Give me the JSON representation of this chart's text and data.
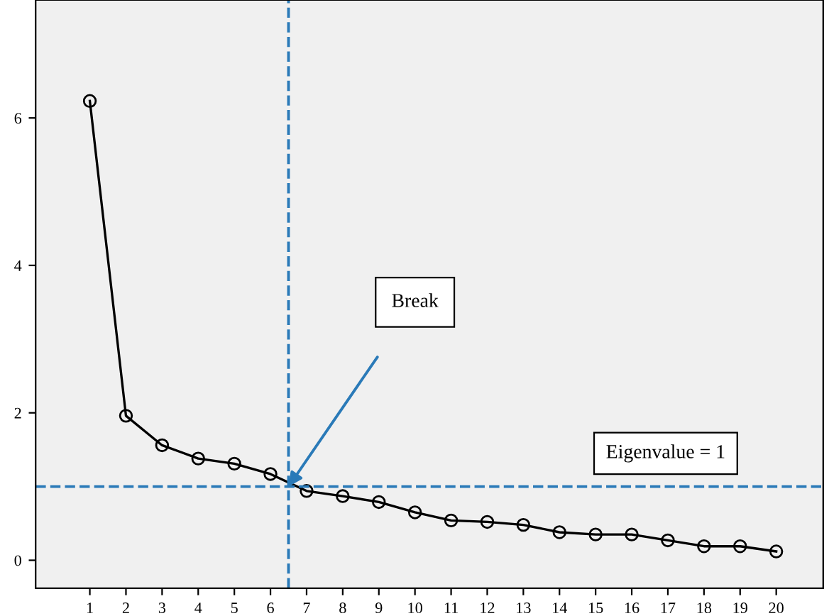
{
  "chart_data": {
    "type": "line",
    "x": [
      1,
      2,
      3,
      4,
      5,
      6,
      7,
      8,
      9,
      10,
      11,
      12,
      13,
      14,
      15,
      16,
      17,
      18,
      19,
      20
    ],
    "series": [
      {
        "color": "#000000",
        "values": [
          6.23,
          1.96,
          1.56,
          1.38,
          1.31,
          1.17,
          0.94,
          0.87,
          0.79,
          0.65,
          0.54,
          0.52,
          0.48,
          0.38,
          0.35,
          0.35,
          0.27,
          0.19,
          0.19,
          0.12
        ]
      }
    ],
    "xlim": [
      -0.5,
      21.3
    ],
    "xticks": [
      1,
      2,
      3,
      4,
      5,
      6,
      7,
      8,
      9,
      10,
      11,
      12,
      13,
      14,
      15,
      16,
      17,
      18,
      19,
      20
    ],
    "ylim": [
      -0.38,
      7.6
    ],
    "yticks": [
      0,
      2,
      4,
      6
    ],
    "marker": "circle",
    "line_style": "solid",
    "grid": false,
    "legend": false,
    "ref_lines": [
      {
        "axis": "x",
        "value": 6.5,
        "color": "#2a7ab8",
        "line_style": "dashed"
      },
      {
        "axis": "y",
        "value": 1,
        "label": "Eigenvalue = 1",
        "color": "#2a7ab8",
        "line_style": "dashed"
      }
    ],
    "annotations": [
      "Break"
    ]
  }
}
